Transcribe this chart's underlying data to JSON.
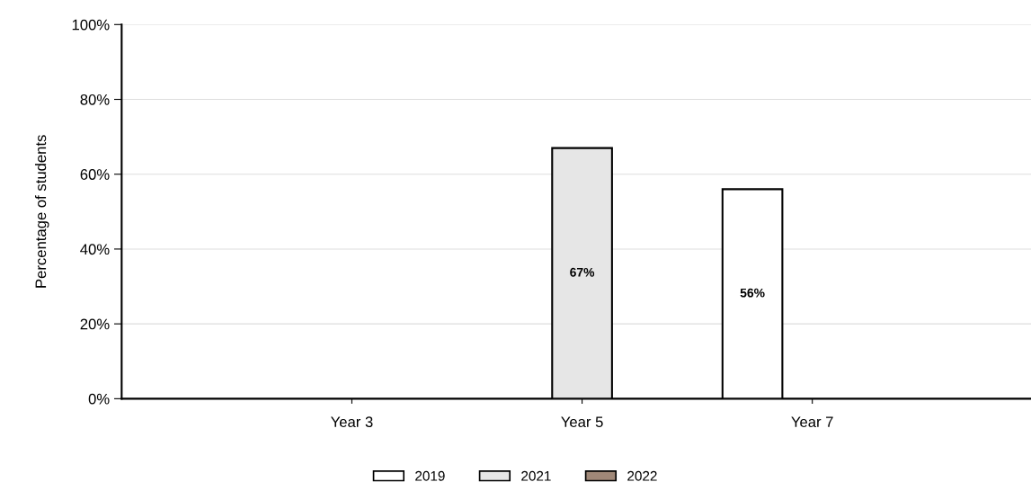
{
  "chart_data": {
    "type": "bar",
    "ylabel": "Percentage of students",
    "categories": [
      "Year 3",
      "Year 5",
      "Year 7"
    ],
    "series": [
      {
        "name": "2019",
        "color": "#ffffff",
        "values": [
          null,
          null,
          56
        ],
        "value_labels": [
          null,
          null,
          "56%"
        ]
      },
      {
        "name": "2021",
        "color": "#e6e6e6",
        "values": [
          null,
          67,
          null
        ],
        "value_labels": [
          null,
          "67%",
          null
        ]
      },
      {
        "name": "2022",
        "color": "#a08878",
        "values": [
          null,
          null,
          null
        ],
        "value_labels": [
          null,
          null,
          null
        ]
      }
    ],
    "ylim": [
      0,
      100
    ],
    "yticks": [
      {
        "value": 0,
        "label": "0%"
      },
      {
        "value": 20,
        "label": "20%"
      },
      {
        "value": 40,
        "label": "40%"
      },
      {
        "value": 60,
        "label": "60%"
      },
      {
        "value": 80,
        "label": "80%"
      },
      {
        "value": 100,
        "label": "100%"
      }
    ],
    "grid": "y",
    "legend": "bottom"
  }
}
